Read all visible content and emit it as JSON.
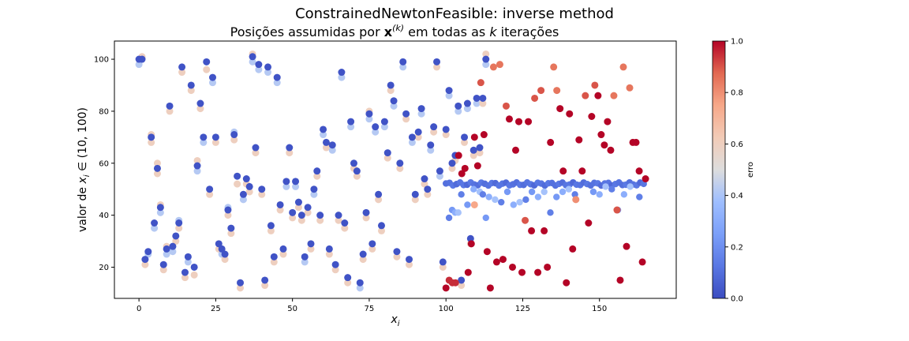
{
  "suptitle": "ConstrainedNewtonFeasible: inverse method",
  "chart_data": {
    "type": "scatter",
    "title_parts": [
      "Posições assumidas por ",
      "x",
      "(k)",
      " em todas as ",
      "k",
      " iterações"
    ],
    "xlabel_parts": [
      "x",
      "i"
    ],
    "ylabel_parts": [
      "valor de ",
      "x",
      "i",
      " ∈ (10, 100)"
    ],
    "xlim": [
      -8,
      175
    ],
    "ylim": [
      8,
      107
    ],
    "xticks": [
      0,
      25,
      50,
      75,
      100,
      125,
      150
    ],
    "yticks": [
      20,
      40,
      60,
      80,
      100
    ],
    "grid": false,
    "colorbar": {
      "label": "erro",
      "cmap": "coolwarm",
      "range": [
        0,
        1
      ],
      "ticks": [
        "0.0",
        "0.2",
        "0.4",
        "0.6",
        "0.8",
        "1.0"
      ]
    },
    "colors": {
      "low": "#3b4cc0",
      "mid": "#dddddd",
      "high": "#b40426"
    },
    "converged_points": [
      [
        0,
        100
      ],
      [
        1,
        100
      ],
      [
        2,
        23
      ],
      [
        3,
        26
      ],
      [
        4,
        70
      ],
      [
        5,
        37
      ],
      [
        6,
        58
      ],
      [
        7,
        43
      ],
      [
        8,
        21
      ],
      [
        9,
        27
      ],
      [
        10,
        82
      ],
      [
        11,
        28
      ],
      [
        12,
        32
      ],
      [
        13,
        37
      ],
      [
        14,
        97
      ],
      [
        15,
        18
      ],
      [
        16,
        24
      ],
      [
        17,
        90
      ],
      [
        18,
        20
      ],
      [
        19,
        59
      ],
      [
        20,
        83
      ],
      [
        21,
        70
      ],
      [
        22,
        99
      ],
      [
        23,
        50
      ],
      [
        24,
        93
      ],
      [
        25,
        70
      ],
      [
        26,
        29
      ],
      [
        27,
        27
      ],
      [
        28,
        25
      ],
      [
        29,
        42
      ],
      [
        30,
        35
      ],
      [
        31,
        71
      ],
      [
        32,
        55
      ],
      [
        33,
        14
      ],
      [
        34,
        48
      ],
      [
        35,
        54
      ],
      [
        36,
        51
      ],
      [
        37,
        101
      ],
      [
        38,
        66
      ],
      [
        39,
        98
      ],
      [
        40,
        50
      ],
      [
        41,
        15
      ],
      [
        42,
        97
      ],
      [
        43,
        36
      ],
      [
        44,
        24
      ],
      [
        45,
        93
      ],
      [
        46,
        44
      ],
      [
        47,
        27
      ],
      [
        48,
        53
      ],
      [
        49,
        66
      ],
      [
        50,
        41
      ],
      [
        51,
        53
      ],
      [
        52,
        45
      ],
      [
        53,
        40
      ],
      [
        54,
        24
      ],
      [
        55,
        43
      ],
      [
        56,
        29
      ],
      [
        57,
        50
      ],
      [
        58,
        57
      ],
      [
        59,
        40
      ],
      [
        60,
        73
      ],
      [
        61,
        68
      ],
      [
        62,
        27
      ],
      [
        63,
        67
      ],
      [
        64,
        21
      ],
      [
        65,
        40
      ],
      [
        66,
        95
      ],
      [
        67,
        37
      ],
      [
        68,
        16
      ],
      [
        69,
        76
      ],
      [
        70,
        60
      ],
      [
        71,
        57
      ],
      [
        72,
        14
      ],
      [
        73,
        25
      ],
      [
        74,
        41
      ],
      [
        75,
        79
      ],
      [
        76,
        29
      ],
      [
        77,
        74
      ],
      [
        78,
        48
      ],
      [
        79,
        36
      ],
      [
        80,
        76
      ],
      [
        81,
        64
      ],
      [
        82,
        90
      ],
      [
        83,
        84
      ],
      [
        84,
        26
      ],
      [
        85,
        60
      ],
      [
        86,
        99
      ],
      [
        87,
        79
      ],
      [
        88,
        23
      ],
      [
        89,
        70
      ],
      [
        90,
        48
      ],
      [
        91,
        72
      ],
      [
        92,
        81
      ],
      [
        93,
        54
      ],
      [
        94,
        50
      ],
      [
        95,
        67
      ],
      [
        96,
        74
      ],
      [
        97,
        99
      ],
      [
        98,
        57
      ],
      [
        99,
        22
      ],
      [
        100,
        73
      ],
      [
        101,
        88
      ],
      [
        102,
        60
      ],
      [
        103,
        63
      ],
      [
        104,
        82
      ],
      [
        105,
        15
      ],
      [
        106,
        70
      ],
      [
        107,
        83
      ],
      [
        108,
        31
      ],
      [
        109,
        65
      ],
      [
        110,
        85
      ],
      [
        111,
        66
      ],
      [
        112,
        85
      ],
      [
        113,
        100
      ]
    ],
    "trail_points": [
      [
        0,
        98
      ],
      [
        1,
        101
      ],
      [
        2,
        21
      ],
      [
        3,
        25
      ],
      [
        4,
        68
      ],
      [
        4,
        71
      ],
      [
        5,
        35
      ],
      [
        6,
        56
      ],
      [
        6,
        60
      ],
      [
        7,
        41
      ],
      [
        7,
        44
      ],
      [
        8,
        19
      ],
      [
        9,
        25
      ],
      [
        9,
        28
      ],
      [
        10,
        80
      ],
      [
        11,
        26
      ],
      [
        12,
        30
      ],
      [
        13,
        35
      ],
      [
        13,
        38
      ],
      [
        14,
        95
      ],
      [
        15,
        16
      ],
      [
        16,
        22
      ],
      [
        17,
        88
      ],
      [
        18,
        17
      ],
      [
        19,
        57
      ],
      [
        19,
        61
      ],
      [
        20,
        81
      ],
      [
        21,
        68
      ],
      [
        22,
        96
      ],
      [
        23,
        48
      ],
      [
        24,
        91
      ],
      [
        25,
        68
      ],
      [
        26,
        27
      ],
      [
        27,
        25
      ],
      [
        28,
        23
      ],
      [
        29,
        40
      ],
      [
        29,
        43
      ],
      [
        30,
        33
      ],
      [
        31,
        69
      ],
      [
        31,
        72
      ],
      [
        32,
        52
      ],
      [
        33,
        12
      ],
      [
        34,
        46
      ],
      [
        35,
        52
      ],
      [
        36,
        49
      ],
      [
        37,
        99
      ],
      [
        37,
        102
      ],
      [
        38,
        64
      ],
      [
        39,
        96
      ],
      [
        40,
        48
      ],
      [
        41,
        13
      ],
      [
        42,
        95
      ],
      [
        43,
        34
      ],
      [
        44,
        22
      ],
      [
        45,
        91
      ],
      [
        46,
        42
      ],
      [
        47,
        25
      ],
      [
        48,
        51
      ],
      [
        49,
        64
      ],
      [
        50,
        39
      ],
      [
        51,
        51
      ],
      [
        52,
        43
      ],
      [
        53,
        38
      ],
      [
        54,
        22
      ],
      [
        55,
        41
      ],
      [
        56,
        27
      ],
      [
        57,
        48
      ],
      [
        58,
        55
      ],
      [
        59,
        38
      ],
      [
        60,
        71
      ],
      [
        61,
        66
      ],
      [
        62,
        25
      ],
      [
        63,
        65
      ],
      [
        64,
        19
      ],
      [
        65,
        38
      ],
      [
        66,
        93
      ],
      [
        67,
        35
      ],
      [
        68,
        14
      ],
      [
        69,
        74
      ],
      [
        70,
        58
      ],
      [
        71,
        55
      ],
      [
        72,
        12
      ],
      [
        73,
        23
      ],
      [
        74,
        39
      ],
      [
        75,
        77
      ],
      [
        75,
        80
      ],
      [
        76,
        27
      ],
      [
        77,
        72
      ],
      [
        78,
        46
      ],
      [
        79,
        34
      ],
      [
        80,
        74
      ],
      [
        81,
        62
      ],
      [
        82,
        88
      ],
      [
        83,
        82
      ],
      [
        84,
        24
      ],
      [
        85,
        58
      ],
      [
        86,
        97
      ],
      [
        87,
        77
      ],
      [
        88,
        21
      ],
      [
        89,
        68
      ],
      [
        90,
        46
      ],
      [
        91,
        70
      ],
      [
        92,
        79
      ],
      [
        93,
        52
      ],
      [
        94,
        48
      ],
      [
        95,
        65
      ],
      [
        96,
        72
      ],
      [
        97,
        97
      ],
      [
        98,
        55
      ],
      [
        99,
        20
      ],
      [
        100,
        71
      ],
      [
        101,
        86
      ],
      [
        102,
        58
      ],
      [
        103,
        61
      ],
      [
        104,
        80
      ],
      [
        105,
        13
      ],
      [
        106,
        68
      ],
      [
        107,
        81
      ],
      [
        108,
        29
      ],
      [
        109,
        63
      ],
      [
        110,
        83
      ],
      [
        111,
        64
      ],
      [
        112,
        83
      ],
      [
        113,
        98
      ],
      [
        113,
        102
      ]
    ],
    "right_scatter": [
      [
        115,
        12,
        1.0
      ],
      [
        116,
        15,
        0.95
      ],
      [
        117,
        14,
        0.95
      ],
      [
        118,
        14,
        0.95
      ],
      [
        119,
        63,
        1.0
      ],
      [
        120,
        56,
        1.0
      ],
      [
        121,
        58,
        1.0
      ],
      [
        122,
        18,
        1.0
      ],
      [
        123,
        29,
        1.0
      ],
      [
        124,
        70,
        1.0
      ],
      [
        124,
        44,
        0.75
      ],
      [
        125,
        59,
        1.0
      ],
      [
        126,
        91,
        0.9
      ],
      [
        127,
        71,
        1.0
      ],
      [
        128,
        26,
        1.0
      ],
      [
        129,
        12,
        1.0
      ],
      [
        130,
        97,
        0.85
      ],
      [
        131,
        22,
        1.0
      ],
      [
        132,
        98,
        0.85
      ],
      [
        133,
        23,
        1.0
      ],
      [
        134,
        82,
        0.9
      ],
      [
        135,
        77,
        1.0
      ],
      [
        136,
        20,
        1.0
      ],
      [
        137,
        65,
        1.0
      ],
      [
        138,
        76,
        1.0
      ],
      [
        139,
        18,
        1.0
      ],
      [
        140,
        38,
        0.9
      ],
      [
        141,
        76,
        1.0
      ],
      [
        142,
        34,
        1.0
      ],
      [
        143,
        85,
        0.9
      ],
      [
        144,
        18,
        1.0
      ],
      [
        145,
        88,
        0.9
      ],
      [
        146,
        34,
        1.0
      ],
      [
        147,
        20,
        1.0
      ],
      [
        148,
        68,
        1.0
      ],
      [
        149,
        97,
        0.85
      ],
      [
        150,
        88,
        0.85
      ],
      [
        151,
        81,
        1.0
      ],
      [
        152,
        57,
        1.0
      ],
      [
        153,
        14,
        1.0
      ],
      [
        154,
        79,
        1.0
      ],
      [
        155,
        27,
        1.0
      ],
      [
        156,
        46,
        0.8
      ],
      [
        157,
        69,
        1.0
      ],
      [
        158,
        57,
        1.0
      ],
      [
        159,
        86,
        0.9
      ],
      [
        160,
        37,
        1.0
      ],
      [
        161,
        78,
        1.0
      ],
      [
        162,
        90,
        0.9
      ],
      [
        163,
        86,
        1.0
      ],
      [
        164,
        71,
        1.0
      ],
      [
        165,
        67,
        1.0
      ],
      [
        166,
        76,
        1.0
      ],
      [
        167,
        65,
        1.0
      ],
      [
        168,
        86,
        0.85
      ],
      [
        169,
        42,
        0.9
      ],
      [
        170,
        15,
        1.0
      ],
      [
        171,
        97,
        0.85
      ],
      [
        172,
        28,
        1.0
      ],
      [
        173,
        89,
        0.85
      ],
      [
        174,
        68,
        1.0
      ],
      [
        175,
        68,
        1.0
      ],
      [
        176,
        57,
        1.0
      ],
      [
        177,
        22,
        1.0
      ],
      [
        178,
        54,
        1.0
      ]
    ]
  }
}
